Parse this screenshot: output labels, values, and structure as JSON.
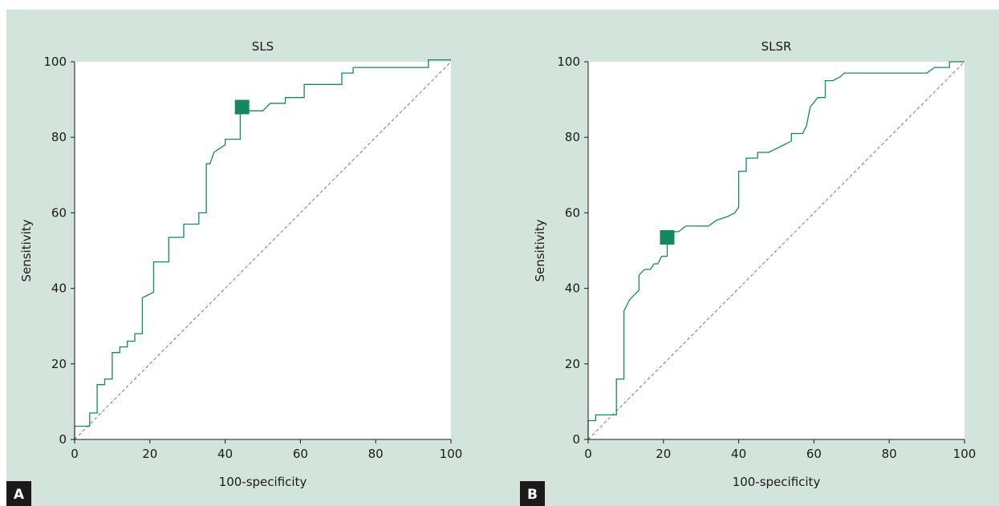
{
  "colors": {
    "background": "#d2e4dc",
    "plot_area": "#ffffff",
    "curve": "#138a5e",
    "marker": "#138a5e",
    "diagonal": "#7a7a7a",
    "panel_tag": "#1a1a1a"
  },
  "chart_data": [
    {
      "type": "line",
      "panel_label": "A",
      "title": "SLS",
      "xlabel": "100-specificity",
      "ylabel": "Sensitivity",
      "xlim": [
        0,
        100
      ],
      "ylim": [
        0,
        100
      ],
      "xticks": [
        "0",
        "20",
        "40",
        "60",
        "80",
        "100"
      ],
      "yticks": [
        "0",
        "20",
        "40",
        "60",
        "80",
        "100"
      ],
      "grid": false,
      "reference_line": "dashed diagonal",
      "series": [
        {
          "x": [
            0,
            0,
            4,
            4,
            6,
            6,
            8,
            8,
            10,
            10,
            12,
            12,
            14,
            14,
            16,
            16,
            18,
            18,
            21,
            21,
            25,
            25,
            29,
            29,
            33,
            33,
            35,
            35,
            36,
            37,
            40,
            40,
            44,
            44,
            46,
            48,
            50,
            52,
            56,
            56,
            61,
            61,
            71,
            71,
            74,
            74,
            76,
            94,
            94,
            100
          ],
          "y": [
            0,
            3.5,
            3.5,
            7,
            7,
            14.5,
            14.5,
            16,
            16,
            23,
            23,
            24.5,
            24.5,
            26,
            26,
            28,
            28,
            37.5,
            39,
            47,
            47,
            53.5,
            53.5,
            57,
            57,
            60,
            60,
            73,
            73,
            76,
            78,
            79.5,
            79.5,
            88,
            87,
            87,
            87,
            89,
            89,
            90.5,
            90.5,
            94,
            94,
            97,
            97,
            98.5,
            98.5,
            98.5,
            100.5,
            100.5
          ]
        }
      ],
      "marker_point": {
        "x": 44.5,
        "y": 88
      }
    },
    {
      "type": "line",
      "panel_label": "B",
      "title": "SLSR",
      "xlabel": "100-specificity",
      "ylabel": "Sensitivity",
      "xlim": [
        0,
        100
      ],
      "ylim": [
        0,
        100
      ],
      "xticks": [
        "0",
        "20",
        "40",
        "60",
        "80",
        "100"
      ],
      "yticks": [
        "0",
        "20",
        "40",
        "60",
        "80",
        "100"
      ],
      "grid": false,
      "reference_line": "dashed diagonal",
      "series": [
        {
          "x": [
            0,
            0,
            2,
            2,
            7.5,
            7.5,
            9.5,
            9.5,
            11,
            12.5,
            13.5,
            13.5,
            15,
            16.5,
            17.5,
            18.5,
            19.5,
            19.5,
            21,
            21,
            24,
            26,
            28,
            32,
            34,
            37,
            39,
            40,
            40,
            42,
            42,
            45,
            45,
            48,
            51,
            54,
            54,
            57,
            58,
            59,
            61,
            62,
            63,
            63,
            65,
            66,
            67,
            68,
            70,
            90,
            92,
            96,
            96,
            100
          ],
          "y": [
            0,
            5,
            5,
            6.5,
            6.5,
            16,
            16,
            34,
            37,
            38.5,
            39.5,
            43.5,
            45,
            45,
            46.5,
            46.5,
            48.5,
            48.5,
            48.5,
            55,
            55,
            56.5,
            56.5,
            56.5,
            58,
            59,
            60,
            61.5,
            71,
            71,
            74.5,
            74.5,
            76,
            76,
            77.5,
            79,
            81,
            81,
            83,
            88,
            90.5,
            90.5,
            90.5,
            95,
            95,
            95.5,
            96,
            97,
            97,
            97,
            98.5,
            98.5,
            100,
            100
          ]
        }
      ],
      "marker_point": {
        "x": 21,
        "y": 53.5
      }
    }
  ]
}
